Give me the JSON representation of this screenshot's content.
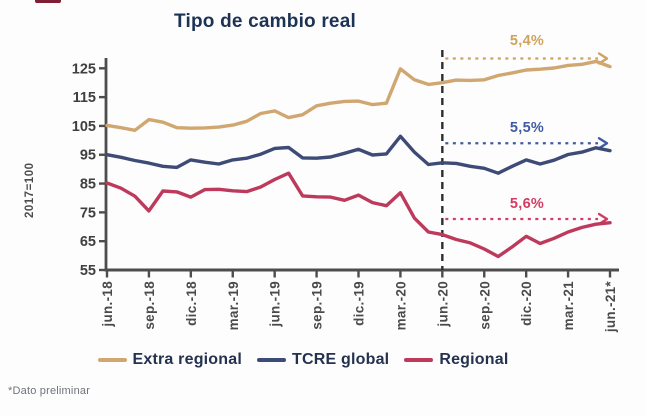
{
  "title": "Tipo de cambio real",
  "footnote": "*Dato preliminar",
  "chart_data": {
    "type": "line",
    "title": "Tipo de cambio real",
    "xlabel": "",
    "ylabel": "2017=100",
    "ylim": [
      55,
      129
    ],
    "y_ticks": [
      125,
      115,
      105,
      95,
      85,
      75,
      65,
      55
    ],
    "grid": false,
    "legend_position": "bottom",
    "x_frequency": "monthly",
    "points_per_category": 3,
    "categories": [
      "jun.-18",
      "sep.-18",
      "dic.-18",
      "mar.-19",
      "jun.-19",
      "sep.-19",
      "dic.-19",
      "mar.-20",
      "jun.-20",
      "sep.-20",
      "dic.-20",
      "mar.-21",
      "jun.-21*"
    ],
    "series": [
      {
        "name": "Extra regional",
        "color": "#d0a771",
        "values": [
          105.2,
          104.4,
          103.5,
          107.2,
          106.3,
          104.4,
          104.2,
          104.3,
          104.6,
          105.3,
          106.6,
          109.3,
          110.2,
          107.9,
          108.9,
          112.0,
          112.9,
          113.5,
          113.6,
          112.4,
          112.9,
          124.8,
          121.0,
          119.4,
          120.0,
          120.9,
          120.8,
          121.0,
          122.5,
          123.4,
          124.4,
          124.7,
          125.1,
          126.0,
          126.4,
          127.4,
          125.6
        ]
      },
      {
        "name": "TCRE global",
        "color": "#3e4b77",
        "values": [
          95.0,
          94.1,
          93.0,
          92.1,
          91.0,
          90.6,
          93.2,
          92.4,
          91.8,
          93.2,
          93.8,
          95.2,
          97.2,
          97.5,
          93.9,
          93.8,
          94.2,
          95.5,
          96.9,
          94.9,
          95.3,
          101.4,
          95.9,
          91.6,
          92.2,
          92.0,
          91.0,
          90.3,
          88.6,
          91.0,
          93.2,
          91.8,
          93.1,
          95.1,
          95.9,
          97.4,
          96.4
        ]
      },
      {
        "name": "Regional",
        "color": "#bd3a5c",
        "values": [
          85.2,
          83.4,
          80.6,
          75.5,
          82.4,
          82.1,
          80.3,
          82.9,
          83.0,
          82.5,
          82.2,
          83.8,
          86.4,
          88.6,
          80.7,
          80.4,
          80.3,
          79.2,
          81.0,
          78.4,
          77.3,
          81.8,
          73.0,
          68.2,
          67.3,
          65.6,
          64.4,
          62.3,
          59.7,
          63.0,
          66.7,
          64.2,
          66.0,
          68.2,
          69.8,
          70.9,
          71.4
        ]
      }
    ],
    "event_line": {
      "at_category": "jun.-20",
      "month_index": 24,
      "style": "dashed",
      "color": "#2e2e2e"
    },
    "annotations": [
      {
        "label": "5,4%",
        "series": "Extra regional",
        "value": 128.4,
        "color": "#cfa35d"
      },
      {
        "label": "5,5%",
        "series": "TCRE global",
        "value": 99.0,
        "color": "#3f5ba4"
      },
      {
        "label": "5,6%",
        "series": "Regional",
        "value": 72.7,
        "color": "#d43b63"
      }
    ]
  }
}
